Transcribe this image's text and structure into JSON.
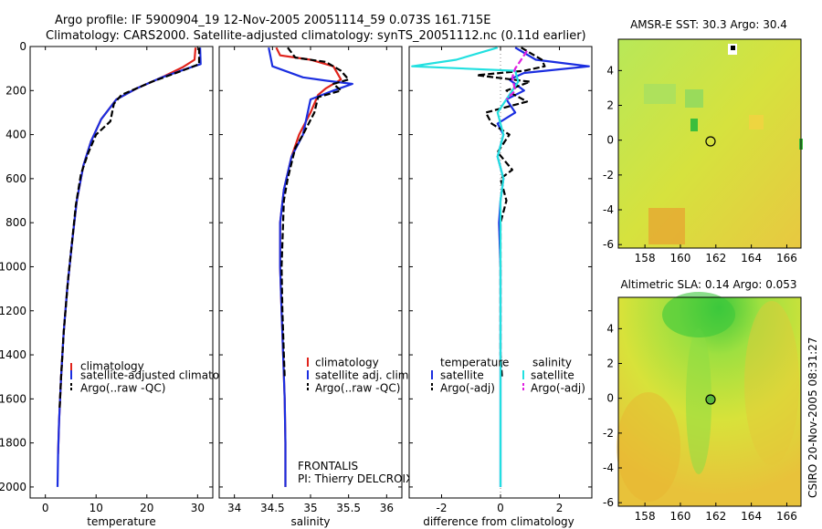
{
  "header": {
    "line1": "Argo profile: IF 5900904_19 12-Nov-2005 20051114_59 0.073S 161.715E",
    "line2": "Climatology: CARS2000. Satellite-adjusted climatology: synTS_20051112.nc (0.11d earlier)"
  },
  "side_label": "CSIRO 20-Nov-2005 08:31:27",
  "colors": {
    "red": "#e0231b",
    "blue": "#1b2ee0",
    "black": "#000000",
    "cyan": "#22e0e0",
    "magenta": "#e020e0"
  },
  "chart_data": [
    {
      "type": "line",
      "id": "temp",
      "xlabel": "temperature",
      "ylim": [
        2050,
        0
      ],
      "xlim": [
        -3,
        33
      ],
      "xticks": [
        0,
        10,
        20,
        30
      ],
      "yticks": [
        0,
        200,
        400,
        600,
        800,
        1000,
        1200,
        1400,
        1600,
        1800,
        2000
      ],
      "legend": [
        "climatology",
        "satellite-adjusted climatology",
        "Argo(..raw -QC)"
      ],
      "series": [
        {
          "name": "climatology",
          "color": "red",
          "dash": "",
          "points": [
            [
              29.6,
              5
            ],
            [
              29.4,
              60
            ],
            [
              27,
              95
            ],
            [
              23,
              140
            ],
            [
              18,
              190
            ],
            [
              14,
              240
            ],
            [
              11,
              330
            ],
            [
              9,
              430
            ],
            [
              7.5,
              540
            ],
            [
              6.2,
              700
            ],
            [
              5.2,
              900
            ],
            [
              4.3,
              1100
            ],
            [
              3.6,
              1300
            ],
            [
              3.1,
              1500
            ],
            [
              2.7,
              1700
            ],
            [
              2.5,
              1850
            ]
          ]
        },
        {
          "name": "satellite-adjusted climatology",
          "color": "blue",
          "dash": "",
          "points": [
            [
              30.5,
              5
            ],
            [
              30.6,
              80
            ],
            [
              28,
              100
            ],
            [
              23,
              140
            ],
            [
              18,
              190
            ],
            [
              14,
              240
            ],
            [
              11,
              330
            ],
            [
              9,
              430
            ],
            [
              7.5,
              540
            ],
            [
              6.2,
              700
            ],
            [
              5.2,
              900
            ],
            [
              4.3,
              1100
            ],
            [
              3.6,
              1300
            ],
            [
              3.1,
              1500
            ],
            [
              2.7,
              1700
            ],
            [
              2.5,
              1850
            ],
            [
              2.4,
              2000
            ]
          ]
        },
        {
          "name": "Argo(..raw -QC)",
          "color": "black",
          "dash": "7,3",
          "points": [
            [
              30.3,
              5
            ],
            [
              30.3,
              80
            ],
            [
              27.5,
              105
            ],
            [
              21,
              160
            ],
            [
              15,
              220
            ],
            [
              13.5,
              260
            ],
            [
              12.8,
              340
            ],
            [
              10,
              400
            ],
            [
              8.5,
              480
            ],
            [
              7,
              580
            ],
            [
              6,
              720
            ],
            [
              5.2,
              900
            ],
            [
              4.5,
              1050
            ],
            [
              3.6,
              1300
            ],
            [
              3.1,
              1500
            ],
            [
              2.8,
              1650
            ]
          ]
        }
      ]
    },
    {
      "type": "line",
      "id": "sal",
      "xlabel": "salinity",
      "ylim": [
        2050,
        0
      ],
      "xlim": [
        33.8,
        36.2
      ],
      "xticks": [
        34,
        34.5,
        35,
        35.5,
        36
      ],
      "legend": [
        "climatology",
        "satellite adj. clim.",
        "Argo(..raw -QC)"
      ],
      "annotation": [
        "FRONTALIS",
        "PI: Thierry DELCROIX"
      ],
      "series": [
        {
          "name": "climatology",
          "color": "red",
          "dash": "",
          "points": [
            [
              34.55,
              5
            ],
            [
              34.6,
              40
            ],
            [
              35,
              60
            ],
            [
              35.3,
              90
            ],
            [
              35.4,
              150
            ],
            [
              35.2,
              190
            ],
            [
              35.1,
              220
            ],
            [
              35,
              300
            ],
            [
              34.85,
              400
            ],
            [
              34.75,
              500
            ],
            [
              34.65,
              650
            ],
            [
              34.6,
              800
            ],
            [
              34.6,
              1000
            ],
            [
              34.62,
              1200
            ],
            [
              34.64,
              1400
            ],
            [
              34.66,
              1600
            ],
            [
              34.67,
              1800
            ],
            [
              34.67,
              2000
            ]
          ]
        },
        {
          "name": "satellite adj. clim.",
          "color": "blue",
          "dash": "",
          "points": [
            [
              34.45,
              5
            ],
            [
              34.5,
              90
            ],
            [
              34.9,
              140
            ],
            [
              35.2,
              155
            ],
            [
              35.55,
              170
            ],
            [
              35.3,
              200
            ],
            [
              35.15,
              220
            ],
            [
              35,
              240
            ],
            [
              34.9,
              400
            ],
            [
              34.75,
              500
            ],
            [
              34.65,
              650
            ],
            [
              34.6,
              800
            ],
            [
              34.6,
              1000
            ],
            [
              34.62,
              1200
            ],
            [
              34.64,
              1400
            ],
            [
              34.66,
              1600
            ],
            [
              34.67,
              1800
            ],
            [
              34.67,
              2000
            ]
          ]
        },
        {
          "name": "Argo(..raw -QC)",
          "color": "black",
          "dash": "7,3",
          "points": [
            [
              34.7,
              5
            ],
            [
              34.8,
              50
            ],
            [
              35.2,
              70
            ],
            [
              35.4,
              110
            ],
            [
              35.5,
              150
            ],
            [
              35.3,
              170
            ],
            [
              35.4,
              200
            ],
            [
              35.1,
              230
            ],
            [
              35.05,
              300
            ],
            [
              34.9,
              400
            ],
            [
              34.8,
              460
            ],
            [
              34.7,
              600
            ],
            [
              34.65,
              700
            ],
            [
              34.62,
              1000
            ],
            [
              34.63,
              1200
            ],
            [
              34.65,
              1400
            ],
            [
              34.66,
              1500
            ]
          ]
        }
      ]
    },
    {
      "type": "line",
      "id": "diff",
      "xlabel": "difference from climatology",
      "ylim": [
        2050,
        0
      ],
      "xlim": [
        -3.1,
        3.1
      ],
      "xticks": [
        -2,
        0,
        2
      ],
      "legend_left_title": "temperature",
      "legend_right_title": "salinity",
      "legend": [
        "satellite",
        "Argo(-adj)",
        "satellite",
        "Argo(-adj)"
      ],
      "series": [
        {
          "name": "temperature satellite",
          "color": "blue",
          "dash": "",
          "points": [
            [
              0.5,
              5
            ],
            [
              1.2,
              60
            ],
            [
              3,
              90
            ],
            [
              0.8,
              120
            ],
            [
              0.3,
              150
            ],
            [
              0.8,
              200
            ],
            [
              0.2,
              240
            ],
            [
              0.5,
              300
            ],
            [
              -0.1,
              350
            ],
            [
              0.1,
              400
            ],
            [
              -0.1,
              500
            ],
            [
              0.1,
              600
            ],
            [
              0,
              700
            ],
            [
              -0.05,
              800
            ],
            [
              0,
              1000
            ],
            [
              0,
              1200
            ],
            [
              0,
              1400
            ],
            [
              0,
              1600
            ],
            [
              0,
              1800
            ],
            [
              0,
              2000
            ]
          ]
        },
        {
          "name": "temperature Argo(-adj)",
          "color": "black",
          "dash": "7,3",
          "points": [
            [
              0.7,
              5
            ],
            [
              1.4,
              60
            ],
            [
              1.5,
              90
            ],
            [
              0.8,
              110
            ],
            [
              -0.8,
              130
            ],
            [
              1,
              160
            ],
            [
              0.2,
              200
            ],
            [
              0.9,
              250
            ],
            [
              -0.5,
              300
            ],
            [
              -0.3,
              350
            ],
            [
              0.3,
              400
            ],
            [
              -0.1,
              480
            ],
            [
              0.4,
              560
            ],
            [
              0,
              600
            ],
            [
              0.2,
              700
            ],
            [
              0,
              800
            ],
            [
              0,
              1000
            ],
            [
              0,
              1200
            ],
            [
              0,
              1400
            ],
            [
              0.05,
              1500
            ]
          ]
        },
        {
          "name": "salinity satellite",
          "color": "cyan",
          "dash": "",
          "points": [
            [
              -0.1,
              5
            ],
            [
              -1.5,
              60
            ],
            [
              -3,
              90
            ],
            [
              0.5,
              110
            ],
            [
              0.6,
              160
            ],
            [
              0.3,
              220
            ],
            [
              -0.1,
              300
            ],
            [
              0.1,
              400
            ],
            [
              -0.1,
              500
            ],
            [
              0.1,
              600
            ],
            [
              0,
              700
            ],
            [
              0,
              900
            ],
            [
              0,
              1100
            ],
            [
              0,
              1300
            ],
            [
              0,
              1500
            ],
            [
              0,
              1700
            ],
            [
              0,
              1900
            ],
            [
              0,
              2000
            ]
          ]
        },
        {
          "name": "salinity Argo(-adj)",
          "color": "magenta",
          "dash": "7,3",
          "points": [
            [
              0.9,
              20
            ],
            [
              0.7,
              60
            ],
            [
              0.5,
              100
            ],
            [
              0.4,
              140
            ],
            [
              0.5,
              200
            ],
            [
              0.2,
              240
            ]
          ]
        }
      ]
    },
    {
      "type": "heatmap",
      "id": "sst",
      "title": "AMSR-E SST: 30.3 Argo: 30.4",
      "xlim": [
        156.5,
        166.8
      ],
      "ylim": [
        -6.2,
        5.8
      ],
      "xticks": [
        158,
        160,
        162,
        164,
        166
      ],
      "yticks": [
        -6,
        -4,
        -2,
        0,
        2,
        4
      ],
      "marker": [
        161.7,
        -0.07
      ],
      "marker_fill": "none"
    },
    {
      "type": "heatmap",
      "id": "sla",
      "title": "Altimetric SLA: 0.14 Argo: 0.053",
      "xlim": [
        156.5,
        166.8
      ],
      "ylim": [
        -6.2,
        5.8
      ],
      "xticks": [
        158,
        160,
        162,
        164,
        166
      ],
      "yticks": [
        -6,
        -4,
        -2,
        0,
        2,
        4
      ],
      "marker": [
        161.7,
        -0.07
      ],
      "marker_fill": "#5ab83c"
    }
  ]
}
